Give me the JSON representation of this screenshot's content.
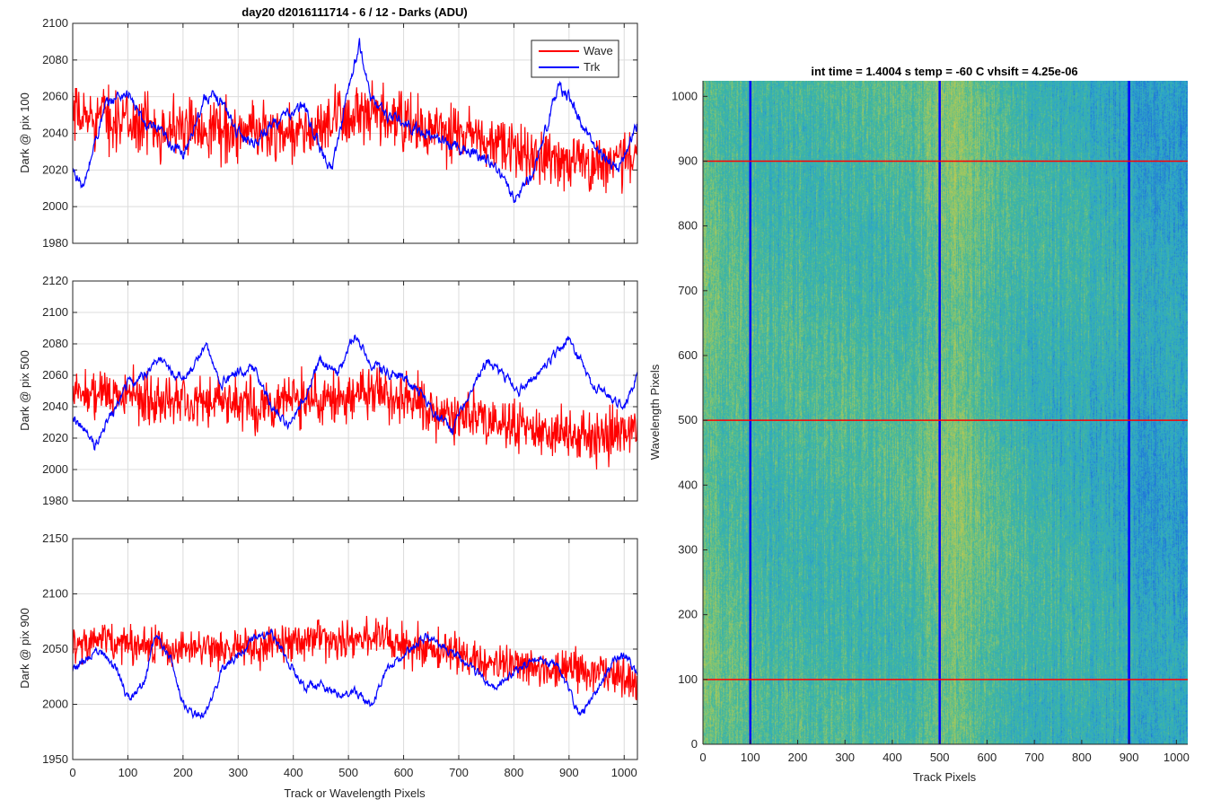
{
  "figure": {
    "title": "day20 d2016111714 - 6 / 12 - Darks (ADU)",
    "colors": {
      "wave": "#ff0000",
      "trk": "#0000ff",
      "axis": "#262626",
      "grid": "#dcdcdc"
    }
  },
  "legend": {
    "entries": [
      "Wave",
      "Trk"
    ],
    "placement": "top-right"
  },
  "chart_data": [
    {
      "type": "line",
      "title": "day20 d2016111714 - 6 / 12 - Darks (ADU)",
      "ylabel": "Dark @ pix 100",
      "xlabel": "",
      "xlim": [
        0,
        1024
      ],
      "ylim": [
        1980,
        2100
      ],
      "xticks": [
        "0",
        "100",
        "200",
        "300",
        "400",
        "500",
        "600",
        "700",
        "800",
        "900",
        "1000"
      ],
      "yticks": [
        "1980",
        "2000",
        "2020",
        "2040",
        "2060",
        "2080",
        "2100"
      ],
      "grid": true,
      "legend": "top-right",
      "series": [
        {
          "name": "Wave",
          "color": "#ff0000",
          "x": [
            0,
            50,
            100,
            150,
            200,
            250,
            300,
            350,
            400,
            450,
            500,
            550,
            600,
            650,
            700,
            750,
            800,
            850,
            900,
            950,
            1000,
            1024
          ],
          "values": [
            2048,
            2050,
            2046,
            2044,
            2042,
            2044,
            2040,
            2042,
            2040,
            2042,
            2050,
            2048,
            2046,
            2040,
            2040,
            2035,
            2030,
            2028,
            2025,
            2024,
            2026,
            2028
          ],
          "noise": 14
        },
        {
          "name": "Trk",
          "color": "#0000ff",
          "x": [
            0,
            20,
            40,
            60,
            80,
            100,
            130,
            160,
            200,
            240,
            270,
            300,
            330,
            360,
            390,
            420,
            450,
            470,
            500,
            520,
            540,
            570,
            600,
            640,
            680,
            720,
            760,
            800,
            830,
            860,
            880,
            900,
            930,
            960,
            990,
            1024
          ],
          "values": [
            2020,
            2010,
            2035,
            2055,
            2060,
            2062,
            2045,
            2040,
            2028,
            2060,
            2058,
            2040,
            2035,
            2045,
            2050,
            2055,
            2030,
            2020,
            2065,
            2088,
            2060,
            2050,
            2045,
            2040,
            2035,
            2030,
            2025,
            2005,
            2015,
            2045,
            2065,
            2060,
            2040,
            2028,
            2020,
            2045
          ],
          "noise": 5
        }
      ]
    },
    {
      "type": "line",
      "ylabel": "Dark @ pix 500",
      "xlabel": "",
      "xlim": [
        0,
        1024
      ],
      "ylim": [
        1980,
        2120
      ],
      "xticks": [
        "0",
        "100",
        "200",
        "300",
        "400",
        "500",
        "600",
        "700",
        "800",
        "900",
        "1000"
      ],
      "yticks": [
        "1980",
        "2000",
        "2020",
        "2040",
        "2060",
        "2080",
        "2100",
        "2120"
      ],
      "grid": true,
      "series": [
        {
          "name": "Wave",
          "color": "#ff0000",
          "x": [
            0,
            50,
            100,
            150,
            200,
            250,
            300,
            350,
            400,
            450,
            500,
            550,
            600,
            650,
            700,
            750,
            800,
            850,
            900,
            950,
            1000,
            1024
          ],
          "values": [
            2048,
            2050,
            2046,
            2044,
            2046,
            2042,
            2044,
            2040,
            2046,
            2044,
            2048,
            2050,
            2046,
            2040,
            2036,
            2032,
            2028,
            2025,
            2022,
            2020,
            2024,
            2026
          ],
          "noise": 14
        },
        {
          "name": "Trk",
          "color": "#0000ff",
          "x": [
            0,
            20,
            40,
            60,
            80,
            100,
            130,
            160,
            190,
            220,
            240,
            270,
            300,
            330,
            360,
            390,
            420,
            450,
            480,
            510,
            540,
            570,
            600,
            630,
            660,
            690,
            720,
            750,
            780,
            810,
            840,
            870,
            900,
            940,
            980,
            1000,
            1024
          ],
          "values": [
            2035,
            2025,
            2015,
            2030,
            2040,
            2055,
            2060,
            2072,
            2058,
            2065,
            2080,
            2055,
            2062,
            2065,
            2040,
            2030,
            2045,
            2070,
            2060,
            2085,
            2068,
            2062,
            2058,
            2048,
            2035,
            2025,
            2050,
            2068,
            2060,
            2050,
            2060,
            2072,
            2085,
            2055,
            2045,
            2040,
            2060
          ],
          "noise": 5
        }
      ]
    },
    {
      "type": "line",
      "ylabel": "Dark @ pix 900",
      "xlabel": "Track or Wavelength Pixels",
      "xlim": [
        0,
        1024
      ],
      "ylim": [
        1950,
        2150
      ],
      "xticks": [
        "0",
        "100",
        "200",
        "300",
        "400",
        "500",
        "600",
        "700",
        "800",
        "900",
        "1000"
      ],
      "yticks": [
        "1950",
        "2000",
        "2050",
        "2100",
        "2150"
      ],
      "grid": true,
      "series": [
        {
          "name": "Wave",
          "color": "#ff0000",
          "x": [
            0,
            50,
            100,
            150,
            200,
            250,
            300,
            350,
            400,
            450,
            500,
            550,
            600,
            650,
            700,
            750,
            800,
            850,
            900,
            950,
            1000,
            1024
          ],
          "values": [
            2055,
            2058,
            2055,
            2052,
            2048,
            2050,
            2052,
            2055,
            2058,
            2060,
            2058,
            2060,
            2055,
            2050,
            2045,
            2040,
            2035,
            2032,
            2030,
            2028,
            2025,
            2024
          ],
          "noise": 15
        },
        {
          "name": "Trk",
          "color": "#0000ff",
          "x": [
            0,
            20,
            50,
            80,
            100,
            130,
            150,
            180,
            200,
            220,
            240,
            270,
            300,
            330,
            360,
            390,
            420,
            450,
            480,
            510,
            540,
            570,
            600,
            640,
            680,
            720,
            760,
            800,
            840,
            880,
            920,
            950,
            980,
            1000,
            1024
          ],
          "values": [
            2030,
            2040,
            2050,
            2030,
            2005,
            2020,
            2062,
            2040,
            2000,
            1992,
            1990,
            2030,
            2045,
            2060,
            2065,
            2040,
            2015,
            2018,
            2010,
            2012,
            2000,
            2030,
            2045,
            2062,
            2050,
            2035,
            2015,
            2030,
            2040,
            2035,
            1990,
            2010,
            2040,
            2045,
            2030
          ],
          "noise": 6
        }
      ]
    },
    {
      "type": "heatmap",
      "title": "int time = 1.4004 s    temp = -60 C    vhsift = 4.25e-06",
      "xlabel": "Track Pixels",
      "ylabel": "Wavelength Pixels",
      "xlim": [
        0,
        1024
      ],
      "ylim": [
        0,
        1024
      ],
      "xticks": [
        "0",
        "100",
        "200",
        "300",
        "400",
        "500",
        "600",
        "700",
        "800",
        "900",
        "1000"
      ],
      "yticks": [
        "0",
        "100",
        "200",
        "300",
        "400",
        "500",
        "600",
        "700",
        "800",
        "900",
        "1000"
      ],
      "colormap": [
        "#1f6fdb",
        "#2ea7c8",
        "#3fb7a0",
        "#8fc66a",
        "#c8c84c"
      ],
      "brightness_profile": {
        "x": [
          0,
          60,
          150,
          250,
          350,
          450,
          520,
          560,
          620,
          700,
          800,
          900,
          960,
          1024
        ],
        "level": [
          0.62,
          0.55,
          0.45,
          0.48,
          0.5,
          0.52,
          0.7,
          0.66,
          0.5,
          0.42,
          0.38,
          0.3,
          0.22,
          0.25
        ]
      },
      "cut_lines": {
        "vertical": {
          "color": "#0000ff",
          "x": [
            100,
            500,
            900
          ]
        },
        "horizontal": {
          "color": "#ff0000",
          "y": [
            100,
            500,
            900
          ]
        }
      }
    }
  ]
}
